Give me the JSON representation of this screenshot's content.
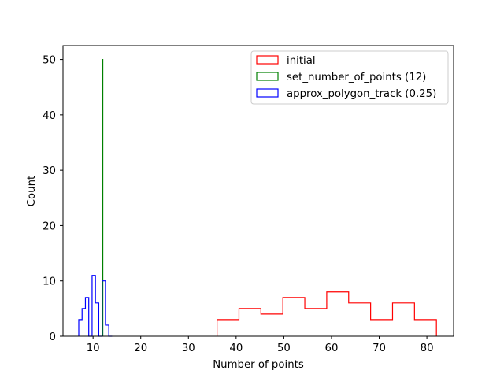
{
  "chart_data": {
    "type": "histogram",
    "title": "",
    "xlabel": "Number of points",
    "ylabel": "Count",
    "xlim": [
      3.7,
      85.6
    ],
    "ylim": [
      0,
      52.5
    ],
    "xticks": [
      10,
      20,
      30,
      40,
      50,
      60,
      70,
      80
    ],
    "yticks": [
      0,
      10,
      20,
      30,
      40,
      50
    ],
    "grid": false,
    "legend_position": "top-right",
    "series": [
      {
        "name": "initial",
        "color": "#ff0000",
        "edges": [
          36,
          40.6,
          45.2,
          49.8,
          54.4,
          59,
          63.6,
          68.2,
          72.8,
          77.4,
          82
        ],
        "counts": [
          3,
          5,
          4,
          7,
          5,
          8,
          6,
          3,
          6,
          3
        ]
      },
      {
        "name": "set_number_of_points (12)",
        "color": "#008000",
        "edges": [
          11.95,
          12.05
        ],
        "counts": [
          50
        ]
      },
      {
        "name": "approx_polygon_track (0.25)",
        "color": "#0000ff",
        "edges": [
          7,
          7.7,
          8.4,
          9.1,
          9.8,
          10.5,
          11.2,
          11.9,
          12.6,
          13.3,
          14
        ],
        "counts": [
          3,
          5,
          7,
          0,
          11,
          6,
          0,
          10,
          2,
          0
        ]
      }
    ]
  }
}
